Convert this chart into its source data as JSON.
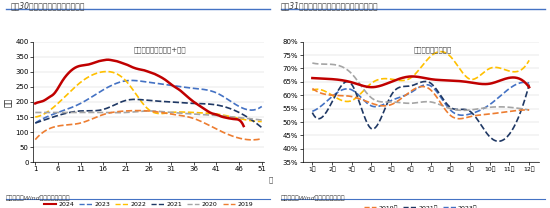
{
  "left": {
    "title": "图表30：近半月沥青继续快速去库",
    "subtitle": "国内沥青库存：社库+厂库",
    "ylabel": "万吨",
    "xlabel": "周",
    "ylim": [
      0,
      400
    ],
    "yticks": [
      0,
      50,
      100,
      150,
      200,
      250,
      300,
      350,
      400
    ],
    "xticks": [
      1,
      6,
      11,
      16,
      21,
      26,
      31,
      36,
      41,
      46,
      51
    ],
    "series": {
      "2024": {
        "color": "#C00000",
        "lw": 1.8,
        "ls": "solid",
        "data_x": [
          1,
          2,
          3,
          4,
          5,
          6,
          7,
          8,
          9,
          10,
          11,
          12,
          13,
          14,
          15,
          16,
          17,
          18,
          19,
          20,
          21,
          22,
          23,
          24,
          25,
          26,
          27,
          28,
          29,
          30,
          31,
          32,
          33,
          34,
          35,
          36,
          37,
          38,
          39,
          40,
          41,
          42,
          43,
          44,
          45,
          46,
          47
        ],
        "data_y": [
          195,
          200,
          205,
          215,
          225,
          245,
          270,
          290,
          305,
          315,
          320,
          322,
          325,
          330,
          335,
          338,
          340,
          338,
          335,
          330,
          325,
          318,
          312,
          308,
          305,
          300,
          295,
          288,
          280,
          270,
          258,
          248,
          238,
          225,
          212,
          200,
          190,
          180,
          170,
          162,
          158,
          152,
          148,
          145,
          143,
          140,
          120
        ]
      },
      "2023": {
        "color": "#4472C4",
        "lw": 1.2,
        "ls": "dashed",
        "data_x": [
          1,
          6,
          11,
          16,
          21,
          26,
          31,
          36,
          41,
          46,
          51
        ],
        "data_y": [
          130,
          165,
          195,
          240,
          270,
          265,
          255,
          245,
          230,
          185,
          185
        ]
      },
      "2022": {
        "color": "#FFC000",
        "lw": 1.2,
        "ls": "dashed",
        "data_x": [
          1,
          6,
          11,
          16,
          21,
          26,
          31,
          36,
          41,
          46,
          51
        ],
        "data_y": [
          150,
          195,
          265,
          300,
          270,
          175,
          165,
          165,
          160,
          145,
          135
        ]
      },
      "2021": {
        "color": "#1F3864",
        "lw": 1.2,
        "ls": "dashed",
        "data_x": [
          1,
          6,
          11,
          16,
          21,
          26,
          31,
          36,
          41,
          46,
          51
        ],
        "data_y": [
          130,
          155,
          170,
          175,
          205,
          205,
          200,
          195,
          190,
          165,
          115
        ]
      },
      "2020": {
        "color": "#A5A5A5",
        "lw": 1.2,
        "ls": "dashed",
        "data_x": [
          1,
          6,
          11,
          16,
          21,
          26,
          31,
          36,
          41,
          46,
          51
        ],
        "data_y": [
          165,
          165,
          165,
          165,
          165,
          170,
          165,
          160,
          155,
          148,
          140
        ]
      },
      "2019": {
        "color": "#ED7D31",
        "lw": 1.2,
        "ls": "dashed",
        "data_x": [
          1,
          6,
          11,
          16,
          21,
          26,
          31,
          36,
          41,
          46,
          51
        ],
        "data_y": [
          75,
          120,
          130,
          158,
          170,
          170,
          160,
          145,
          110,
          80,
          78
        ]
      }
    },
    "source": "资料来源：Wind，国盛证券研究所"
  },
  "right": {
    "title": "图表31：近半月全国水泥库容比环比季度回升",
    "subtitle": "库容比：水泥：全国",
    "ylabel": "",
    "xlabel": "",
    "ylim": [
      0.35,
      0.8
    ],
    "yticks": [
      0.35,
      0.4,
      0.45,
      0.5,
      0.55,
      0.6,
      0.65,
      0.7,
      0.75,
      0.8
    ],
    "yticklabels": [
      "35%",
      "40%",
      "45%",
      "50%",
      "55%",
      "60%",
      "65%",
      "70%",
      "75%",
      "80%"
    ],
    "xticks": [
      1,
      2,
      3,
      4,
      5,
      6,
      7,
      8,
      9,
      10,
      11,
      12
    ],
    "xticklabels": [
      "1月",
      "2月",
      "3月",
      "4月",
      "5月",
      "6月",
      "7月",
      "8月",
      "9月",
      "10月",
      "11月",
      "12月"
    ],
    "series": {
      "2024": {
        "color": "#C00000",
        "lw": 1.8,
        "ls": "solid",
        "data_x": [
          1,
          2,
          3,
          4,
          5,
          6,
          7,
          8,
          9,
          10,
          11,
          12
        ],
        "data_y": [
          0.664,
          0.66,
          0.648,
          0.63,
          0.65,
          0.67,
          0.66,
          0.655,
          0.648,
          0.643,
          0.665,
          0.63
        ]
      },
      "2023": {
        "color": "#4472C4",
        "lw": 1.2,
        "ls": "dashed",
        "data_x": [
          1,
          2,
          3,
          4,
          5,
          6,
          7,
          8,
          9,
          10,
          11,
          12
        ],
        "data_y": [
          0.54,
          0.595,
          0.62,
          0.56,
          0.58,
          0.61,
          0.635,
          0.545,
          0.53,
          0.565,
          0.625,
          0.645
        ]
      },
      "2022": {
        "color": "#FFC000",
        "lw": 1.2,
        "ls": "dashed",
        "data_x": [
          1,
          2,
          3,
          4,
          5,
          6,
          7,
          8,
          9,
          10,
          11,
          12
        ],
        "data_y": [
          0.618,
          0.6,
          0.58,
          0.645,
          0.66,
          0.665,
          0.745,
          0.745,
          0.66,
          0.7,
          0.69,
          0.73
        ]
      },
      "2021": {
        "color": "#1F3864",
        "lw": 1.2,
        "ls": "dashed",
        "data_x": [
          1,
          2,
          3,
          4,
          5,
          6,
          7,
          8,
          9,
          10,
          11,
          12
        ],
        "data_y": [
          0.535,
          0.575,
          0.64,
          0.475,
          0.6,
          0.635,
          0.645,
          0.555,
          0.54,
          0.445,
          0.455,
          0.64
        ]
      },
      "2020": {
        "color": "#A5A5A5",
        "lw": 1.2,
        "ls": "dashed",
        "data_x": [
          1,
          2,
          3,
          4,
          5,
          6,
          7,
          8,
          9,
          10,
          11,
          12
        ],
        "data_y": [
          0.72,
          0.715,
          0.68,
          0.59,
          0.575,
          0.57,
          0.575,
          0.55,
          0.545,
          0.555,
          0.555,
          0.545
        ]
      },
      "2019": {
        "color": "#ED7D31",
        "lw": 1.2,
        "ls": "dashed",
        "data_x": [
          1,
          2,
          3,
          4,
          5,
          6,
          7,
          8,
          9,
          10,
          11,
          12
        ],
        "data_y": [
          0.625,
          0.6,
          0.595,
          0.57,
          0.565,
          0.615,
          0.62,
          0.525,
          0.52,
          0.53,
          0.54,
          0.545
        ]
      }
    },
    "source": "资料来源：Wind，国盛证券研究所"
  },
  "header_color": "#4472C4",
  "source_color": "#4472C4",
  "bg_color": "#FFFFFF",
  "title_color": "#404040"
}
